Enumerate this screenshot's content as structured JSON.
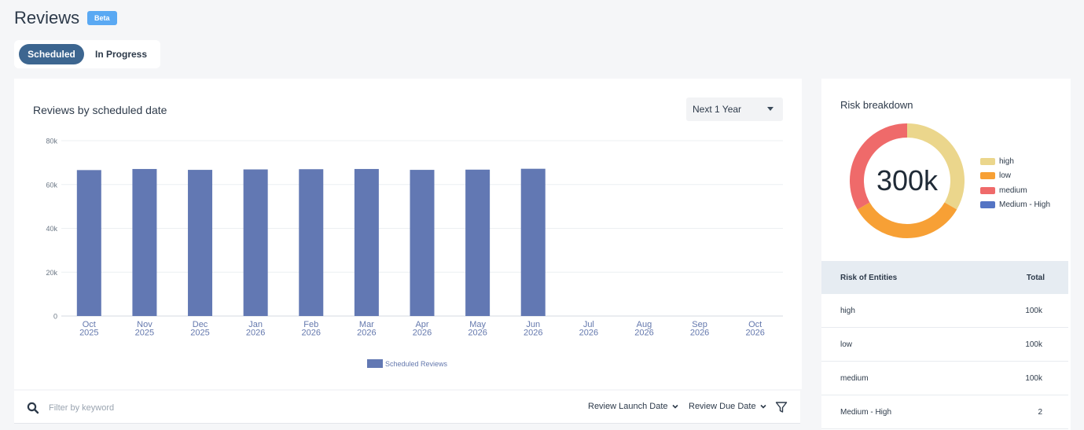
{
  "header": {
    "title": "Reviews",
    "badge": "Beta"
  },
  "tabs": [
    {
      "label": "Scheduled",
      "active": true
    },
    {
      "label": "In Progress",
      "active": false
    }
  ],
  "chart_card": {
    "title": "Reviews by scheduled date",
    "range_select": "Next 1 Year"
  },
  "chart_data": {
    "type": "bar",
    "categories": [
      "Oct\n2025",
      "Nov\n2025",
      "Dec\n2025",
      "Jan\n2026",
      "Feb\n2026",
      "Mar\n2026",
      "Apr\n2026",
      "May\n2026",
      "Jun\n2026",
      "Jul\n2026",
      "Aug\n2026",
      "Sep\n2026",
      "Oct\n2026"
    ],
    "series": [
      {
        "name": "Scheduled Reviews",
        "values": [
          66600,
          67100,
          66700,
          66900,
          67000,
          67100,
          66700,
          66800,
          67200,
          0,
          0,
          0,
          0
        ]
      }
    ],
    "yticks": [
      "0",
      "20k",
      "40k",
      "60k",
      "80k"
    ],
    "ylim": [
      0,
      80000
    ],
    "grid": true,
    "legend": "bottom",
    "color": "#6278b3"
  },
  "filter_bar": {
    "placeholder": "Filter by keyword",
    "launch_date_label": "Review Launch Date",
    "due_date_label": "Review Due Date"
  },
  "risk": {
    "title": "Risk breakdown",
    "total": "300k",
    "legend": [
      {
        "label": "high",
        "color": "#ebd68c"
      },
      {
        "label": "low",
        "color": "#f7a035"
      },
      {
        "label": "medium",
        "color": "#ef6a6a"
      },
      {
        "label": "Medium - High",
        "color": "#5474c4"
      }
    ],
    "segments": [
      {
        "label": "high",
        "value": 100000,
        "color": "#ebd68c"
      },
      {
        "label": "low",
        "value": 100000,
        "color": "#f7a035"
      },
      {
        "label": "medium",
        "value": 100000,
        "color": "#ef6a6a"
      },
      {
        "label": "Medium - High",
        "value": 2,
        "color": "#5474c4"
      }
    ],
    "table": {
      "headers": [
        "Risk of Entities",
        "Total"
      ],
      "rows": [
        {
          "label": "high",
          "total": "100k"
        },
        {
          "label": "low",
          "total": "100k"
        },
        {
          "label": "medium",
          "total": "100k"
        },
        {
          "label": "Medium - High",
          "total": "2"
        }
      ]
    }
  }
}
